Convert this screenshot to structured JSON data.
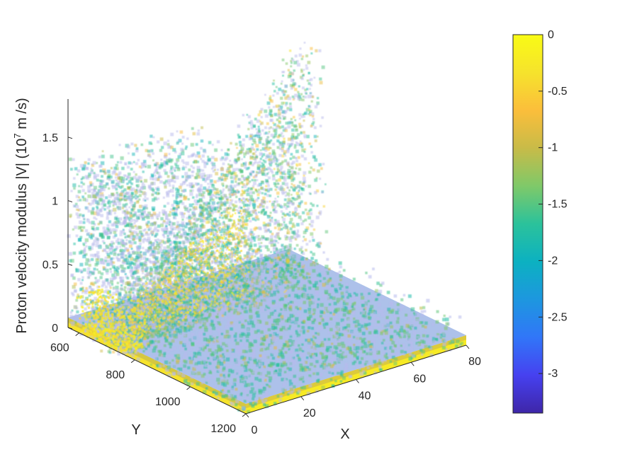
{
  "chart_data": {
    "type": "scatter",
    "title": "",
    "xlabel": "X",
    "ylabel": "Y",
    "zlabel": {
      "main": "Proton velocity modulus |V| (10",
      "exp": "7",
      "tail": " m /s)"
    },
    "x_ticks": [
      "0",
      "20",
      "40",
      "60",
      "80"
    ],
    "x_tick_values": [
      0,
      20,
      40,
      60,
      80
    ],
    "xlim": [
      0,
      80
    ],
    "y_ticks": [
      "600",
      "800",
      "1000",
      "1200"
    ],
    "y_tick_values": [
      600,
      800,
      1000,
      1200
    ],
    "ylim": [
      560,
      1200
    ],
    "z_ticks": [
      "0",
      "0.5",
      "1",
      "1.5"
    ],
    "z_tick_values": [
      0,
      0.5,
      1,
      1.5
    ],
    "zlim": [
      0,
      1.8
    ],
    "colorbar": {
      "ticks": [
        "0",
        "-0.5",
        "-1",
        "-1.5",
        "-2",
        "-2.5",
        "-3"
      ],
      "tick_values": [
        0,
        -0.5,
        -1,
        -1.5,
        -2,
        -2.5,
        -3
      ],
      "range": [
        -3.35,
        0
      ],
      "colormap": [
        "#3e26a8",
        "#4641f0",
        "#3176f8",
        "#1d97df",
        "#0cb1c1",
        "#2bc29b",
        "#7fc969",
        "#c8bb48",
        "#fbbe3b",
        "#f6e32c",
        "#f9fb15"
      ]
    },
    "grid": false,
    "legend": "none",
    "view": "3d-azimuth-45",
    "point_colors": {
      "low": "#b7b9ec",
      "mid": "#3aa3d6",
      "high": "#f6d63a"
    }
  }
}
